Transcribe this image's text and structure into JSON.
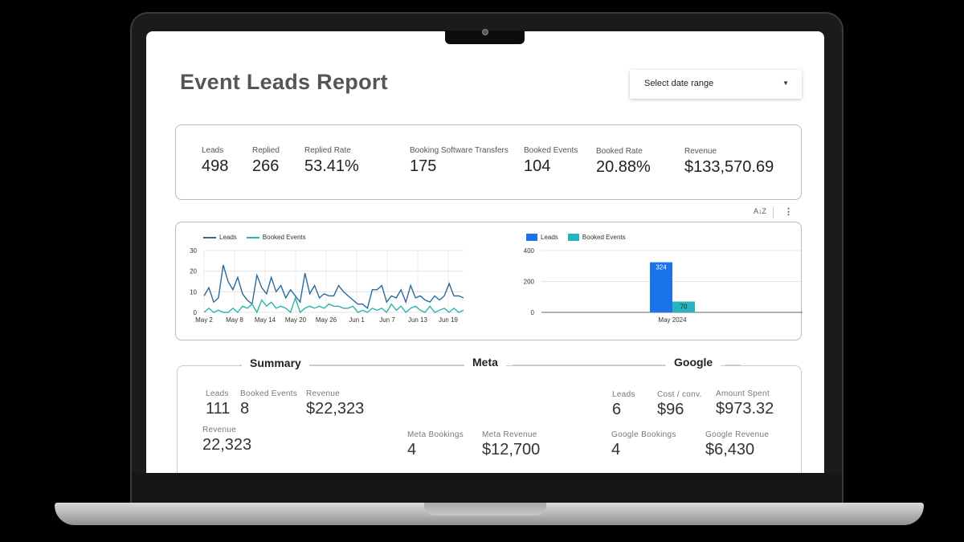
{
  "report": {
    "title": "Event Leads Report",
    "date_range_placeholder": "Select date range"
  },
  "kpis": [
    {
      "label": "Leads",
      "value": "498"
    },
    {
      "label": "Replied",
      "value": "266"
    },
    {
      "label": "Replied Rate",
      "value": "53.41%"
    },
    {
      "label": "Booking Software Transfers",
      "value": "175"
    },
    {
      "label": "Booked Events",
      "value": "104"
    },
    {
      "label": "Booked Rate",
      "value": "20.88%"
    },
    {
      "label": "Revenue",
      "value": "$133,570.69"
    }
  ],
  "toolbar": {
    "sort_icon": "sort-az-icon",
    "sort_glyph": "A↓Z",
    "more_glyph": "⋮"
  },
  "colors": {
    "leads_line": "#2b6a9a",
    "booked_line": "#2bb5a8",
    "leads_bar": "#1a73e8",
    "booked_bar": "#26b5c0"
  },
  "chart_data": [
    {
      "type": "line",
      "legend": [
        "Leads",
        "Booked Events"
      ],
      "x_ticks": [
        "May 2",
        "May 8",
        "May 14",
        "May 20",
        "May 26",
        "Jun 1",
        "Jun 7",
        "Jun 13",
        "Jun 19"
      ],
      "y_ticks": [
        0,
        10,
        20,
        30
      ],
      "ylim": [
        0,
        30
      ],
      "series": [
        {
          "name": "Leads",
          "values": [
            8,
            12,
            5,
            7,
            23,
            15,
            11,
            17,
            9,
            6,
            4,
            18,
            12,
            9,
            17,
            10,
            13,
            7,
            11,
            8,
            5,
            19,
            9,
            13,
            7,
            9,
            8,
            8,
            13,
            10,
            8,
            6,
            4,
            4,
            2,
            11,
            11,
            13,
            5,
            8,
            7,
            11,
            5,
            13,
            7,
            8,
            6,
            5,
            8,
            6,
            8,
            14,
            8,
            8,
            7
          ]
        },
        {
          "name": "Booked Events",
          "values": [
            0,
            2,
            0,
            1,
            0,
            0,
            2,
            0,
            3,
            2,
            4,
            0,
            6,
            3,
            5,
            2,
            3,
            2,
            0,
            7,
            0,
            2,
            3,
            2,
            3,
            2,
            4,
            3,
            3,
            2,
            2,
            3,
            0,
            1,
            0,
            2,
            1,
            2,
            0,
            4,
            1,
            3,
            0,
            2,
            3,
            1,
            0,
            3,
            0,
            1,
            2,
            0,
            2,
            0,
            1
          ]
        }
      ]
    },
    {
      "type": "bar",
      "legend": [
        "Leads",
        "Booked Events"
      ],
      "categories": [
        "May 2024"
      ],
      "y_ticks": [
        0,
        200,
        400
      ],
      "ylim": [
        0,
        400
      ],
      "series": [
        {
          "name": "Leads",
          "values": [
            324
          ]
        },
        {
          "name": "Booked Events",
          "values": [
            70
          ]
        }
      ]
    }
  ],
  "sections": {
    "summary": "Summary",
    "meta": "Meta",
    "google": "Google"
  },
  "summary": {
    "leads": {
      "label": "Leads",
      "value": "111"
    },
    "booked": {
      "label": "Booked Events",
      "value": "8"
    },
    "revenue": {
      "label": "Revenue",
      "value": "$22,323"
    },
    "revenue2": {
      "label": "Revenue",
      "value": "22,323"
    }
  },
  "meta": {
    "bookings": {
      "label": "Meta Bookings",
      "value": "4"
    },
    "revenue": {
      "label": "Meta Revenue",
      "value": "$12,700"
    }
  },
  "google": {
    "leads": {
      "label": "Leads",
      "value": "6"
    },
    "cost": {
      "label": "Cost / conv.",
      "value": "$96"
    },
    "spent": {
      "label": "Amount Spent",
      "value": "$973.32"
    },
    "bookings": {
      "label": "Google Bookings",
      "value": "4"
    },
    "revenue": {
      "label": "Google Revenue",
      "value": "$6,430"
    }
  }
}
